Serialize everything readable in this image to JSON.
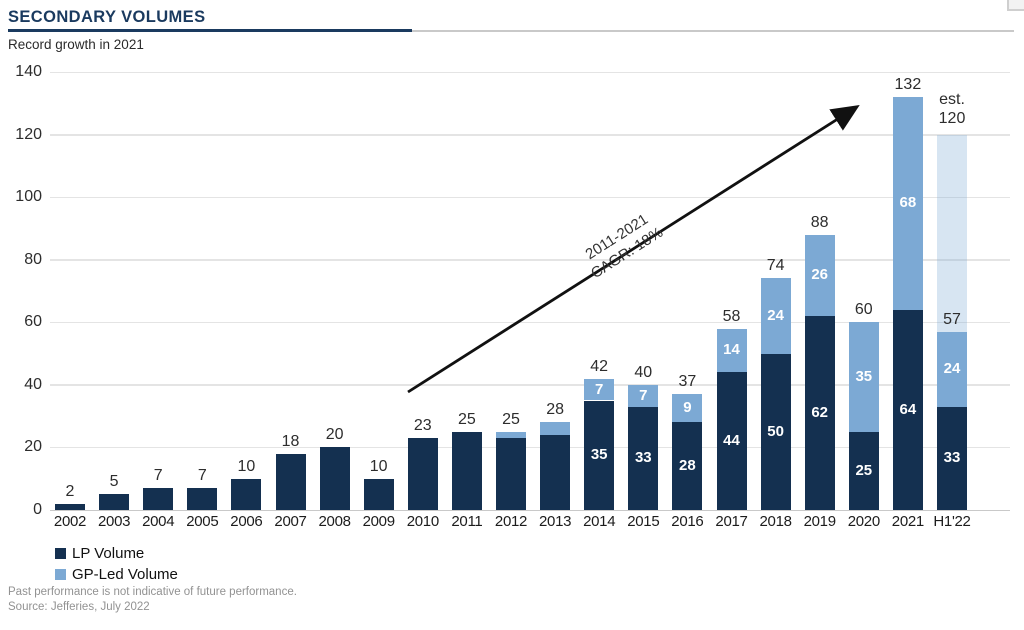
{
  "header": {
    "title": "SECONDARY VOLUMES",
    "subtitle": "Record growth in 2021"
  },
  "colors": {
    "lp_navy": "#143050",
    "gp_blue": "#7ca9d4",
    "estimate_pale_blue": "#d9e5f1",
    "title_navy": "#1a3a5f",
    "gridline_gray": "#e4e4e4"
  },
  "chart_data": {
    "type": "bar",
    "stacked": true,
    "title": "SECONDARY VOLUMES",
    "subtitle": "Record growth in 2021",
    "xlabel": "",
    "ylabel": "",
    "ylim": [
      0,
      140
    ],
    "yticks": [
      0,
      20,
      40,
      60,
      80,
      100,
      120,
      140
    ],
    "grid": true,
    "categories": [
      "2002",
      "2003",
      "2004",
      "2005",
      "2006",
      "2007",
      "2008",
      "2009",
      "2010",
      "2011",
      "2012",
      "2013",
      "2014",
      "2015",
      "2016",
      "2017",
      "2018",
      "2019",
      "2020",
      "2021",
      "H1'22"
    ],
    "series": [
      {
        "name": "LP Volume",
        "color": "#143050",
        "values": [
          2,
          5,
          7,
          7,
          10,
          18,
          20,
          10,
          23,
          25,
          23,
          24,
          35,
          33,
          28,
          44,
          50,
          62,
          25,
          64,
          33
        ],
        "bar_labels": [
          "",
          "",
          "",
          "",
          "",
          "",
          "",
          "",
          "",
          "",
          "",
          "",
          "35",
          "33",
          "28",
          "44",
          "50",
          "62",
          "25",
          "64",
          "33"
        ]
      },
      {
        "name": "GP-Led Volume",
        "color": "#7ca9d4",
        "values": [
          0,
          0,
          0,
          0,
          0,
          0,
          0,
          0,
          0,
          0,
          2,
          4,
          7,
          7,
          9,
          14,
          24,
          26,
          35,
          68,
          24
        ],
        "bar_labels": [
          "",
          "",
          "",
          "",
          "",
          "",
          "",
          "",
          "",
          "",
          "",
          "",
          "7",
          "7",
          "9",
          "14",
          "24",
          "26",
          "35",
          "68",
          "24"
        ]
      }
    ],
    "total_labels": [
      "2",
      "5",
      "7",
      "7",
      "10",
      "18",
      "20",
      "10",
      "23",
      "25",
      "25",
      "28",
      "42",
      "40",
      "37",
      "58",
      "74",
      "88",
      "60",
      "132",
      "57"
    ],
    "estimate": {
      "category": "H1'22",
      "category_index": 20,
      "top_value": 120,
      "base_value": 57,
      "label_line1": "est.",
      "label_line2": "120",
      "color_rgba": "rgba(124,169,212,0.30)"
    },
    "annotation": {
      "line1": "2011-2021",
      "line2": "CAGR: 18%"
    },
    "legend": [
      {
        "label": "LP Volume",
        "color": "#143050"
      },
      {
        "label": "GP-Led Volume",
        "color": "#7ca9d4"
      }
    ],
    "legend_position": "bottom-left"
  },
  "footer": {
    "disclaimer": "Past performance is not indicative of future performance.",
    "source": "Source: Jefferies, July 2022"
  }
}
